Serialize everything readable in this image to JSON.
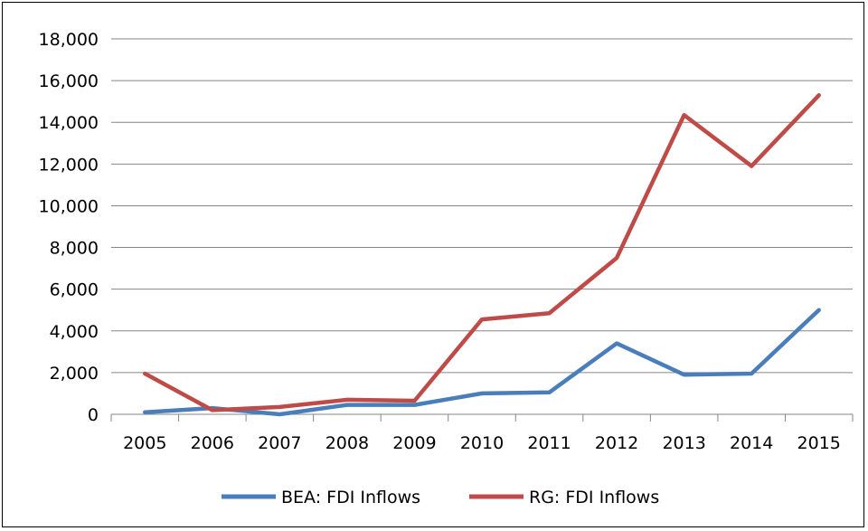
{
  "chart_data": {
    "type": "line",
    "title": "",
    "xlabel": "",
    "ylabel": "",
    "categories": [
      "2005",
      "2006",
      "2007",
      "2008",
      "2009",
      "2010",
      "2011",
      "2012",
      "2013",
      "2014",
      "2015"
    ],
    "ylim": [
      0,
      18000
    ],
    "yticks": [
      "0",
      "2,000",
      "4,000",
      "6,000",
      "8,000",
      "10,000",
      "12,000",
      "14,000",
      "16,000",
      "18,000"
    ],
    "grid": true,
    "legend_position": "bottom",
    "series": [
      {
        "name": "BEA: FDI Inflows",
        "color": "#4a7ebb",
        "values": [
          100,
          300,
          0,
          450,
          450,
          1000,
          1050,
          3400,
          1900,
          1950,
          5000
        ]
      },
      {
        "name": "RG: FDI Inflows",
        "color": "#be4b48",
        "values": [
          1950,
          200,
          350,
          700,
          650,
          4550,
          4850,
          7500,
          14350,
          11900,
          15300
        ]
      }
    ]
  }
}
